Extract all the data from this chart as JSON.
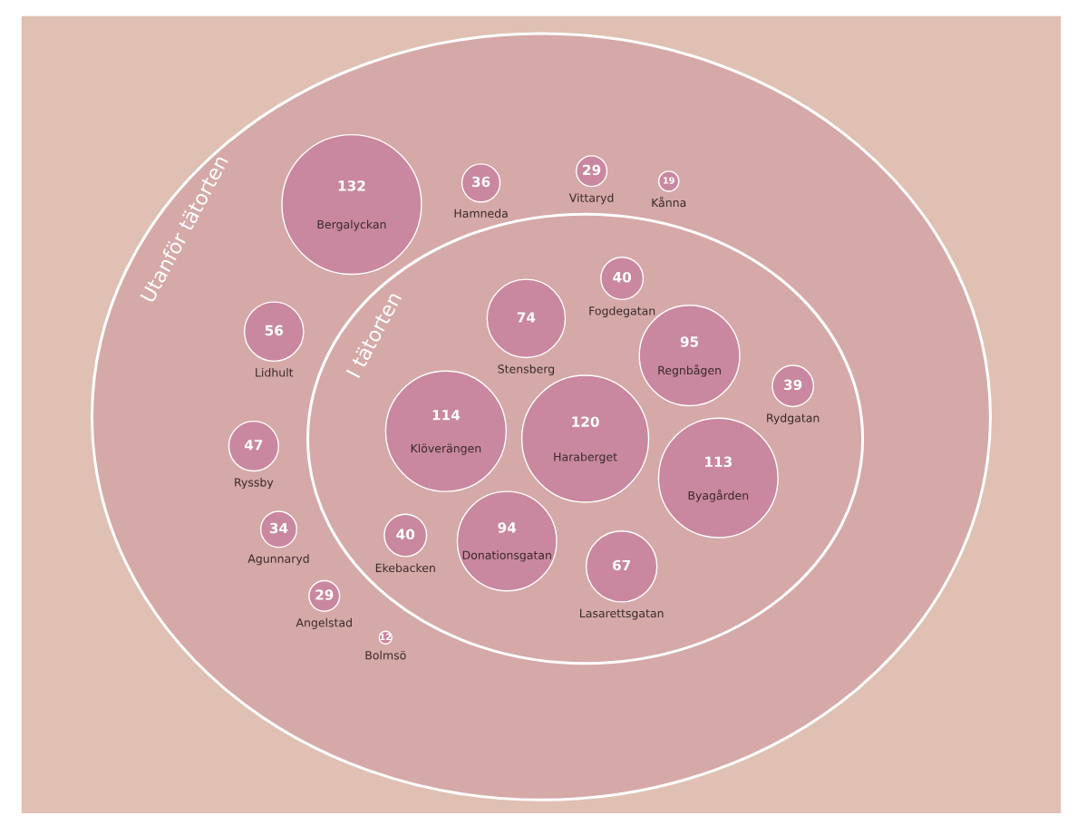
{
  "chart_data": {
    "type": "other",
    "categories": [
      "Vittaryd",
      "Bergalyckan",
      "Bolmsö",
      "Ryssby",
      "Haraberget",
      "Agunnaryd",
      "Donationsgatan",
      "Byagården",
      "Lidhult",
      "Regnbågen",
      "Lasarettsgatan",
      "Fogdegatan",
      "Rydgatan",
      "Stensberg",
      "Klöverängen",
      "Kånna",
      "Hamneda",
      "Ekebacken",
      "Angelstad"
    ],
    "series": [
      {
        "name": "Utanför tätorten",
        "color": "#c9889f",
        "values": [
          29,
          132,
          12,
          47,
          null,
          34,
          null,
          null,
          56,
          null,
          null,
          null,
          null,
          null,
          null,
          19,
          36,
          null,
          29
        ]
      },
      {
        "name": "I tätorten",
        "color": "#c9889f",
        "values": [
          null,
          null,
          null,
          null,
          120,
          null,
          94,
          113,
          null,
          95,
          67,
          40,
          39,
          74,
          114,
          null,
          null,
          40,
          null
        ]
      }
    ],
    "data_labels": true
  }
}
